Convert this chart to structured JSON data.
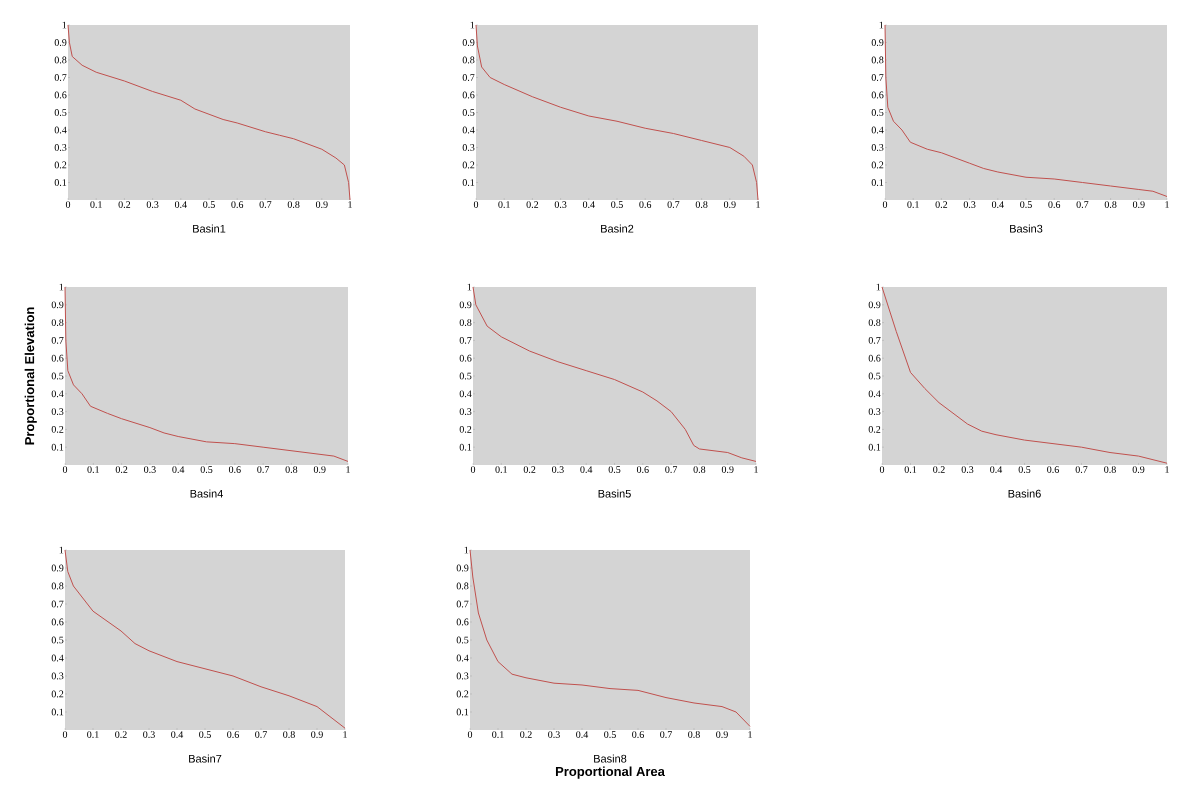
{
  "chart_data": [
    {
      "type": "line",
      "title": "Basin1",
      "color": "#c0504d",
      "xlim": [
        0,
        1
      ],
      "ylim": [
        0,
        1
      ],
      "xticks": [
        0,
        0.1,
        0.2,
        0.3,
        0.4,
        0.5,
        0.6,
        0.7,
        0.8,
        0.9,
        1
      ],
      "yticks": [
        0.1,
        0.2,
        0.3,
        0.4,
        0.5,
        0.6,
        0.7,
        0.8,
        0.9,
        1
      ],
      "x": [
        0,
        0.005,
        0.015,
        0.05,
        0.1,
        0.2,
        0.25,
        0.3,
        0.4,
        0.45,
        0.5,
        0.55,
        0.6,
        0.7,
        0.75,
        0.8,
        0.9,
        0.95,
        0.98,
        0.995,
        1
      ],
      "values": [
        1,
        0.9,
        0.82,
        0.77,
        0.73,
        0.68,
        0.65,
        0.62,
        0.57,
        0.52,
        0.49,
        0.46,
        0.44,
        0.39,
        0.37,
        0.35,
        0.29,
        0.24,
        0.2,
        0.1,
        0
      ]
    },
    {
      "type": "line",
      "title": "Basin2",
      "color": "#c0504d",
      "xlim": [
        0,
        1
      ],
      "ylim": [
        0,
        1
      ],
      "xticks": [
        0,
        0.1,
        0.2,
        0.3,
        0.4,
        0.5,
        0.6,
        0.7,
        0.8,
        0.9,
        1
      ],
      "yticks": [
        0.1,
        0.2,
        0.3,
        0.4,
        0.5,
        0.6,
        0.7,
        0.8,
        0.9,
        1
      ],
      "x": [
        0,
        0.005,
        0.02,
        0.05,
        0.1,
        0.2,
        0.3,
        0.4,
        0.5,
        0.6,
        0.7,
        0.8,
        0.9,
        0.95,
        0.98,
        0.995,
        1
      ],
      "values": [
        1,
        0.88,
        0.76,
        0.7,
        0.66,
        0.59,
        0.53,
        0.48,
        0.45,
        0.41,
        0.38,
        0.34,
        0.3,
        0.25,
        0.2,
        0.1,
        0
      ]
    },
    {
      "type": "line",
      "title": "Basin3",
      "color": "#c0504d",
      "xlim": [
        0,
        1
      ],
      "ylim": [
        0,
        1
      ],
      "xticks": [
        0,
        0.1,
        0.2,
        0.3,
        0.4,
        0.5,
        0.6,
        0.7,
        0.8,
        0.9,
        1
      ],
      "yticks": [
        0.1,
        0.2,
        0.3,
        0.4,
        0.5,
        0.6,
        0.7,
        0.8,
        0.9,
        1
      ],
      "x": [
        0,
        0.003,
        0.01,
        0.03,
        0.06,
        0.09,
        0.15,
        0.2,
        0.3,
        0.35,
        0.4,
        0.5,
        0.6,
        0.7,
        0.8,
        0.9,
        0.95,
        1
      ],
      "values": [
        1,
        0.7,
        0.53,
        0.45,
        0.4,
        0.33,
        0.29,
        0.27,
        0.21,
        0.18,
        0.16,
        0.13,
        0.12,
        0.1,
        0.08,
        0.06,
        0.05,
        0.02
      ]
    },
    {
      "type": "line",
      "title": "Basin4",
      "ylabel": "Proportional Elevation",
      "color": "#c0504d",
      "xlim": [
        0,
        1
      ],
      "ylim": [
        0,
        1
      ],
      "xticks": [
        0,
        0.1,
        0.2,
        0.3,
        0.4,
        0.5,
        0.6,
        0.7,
        0.8,
        0.9,
        1
      ],
      "yticks": [
        0.1,
        0.2,
        0.3,
        0.4,
        0.5,
        0.6,
        0.7,
        0.8,
        0.9,
        1
      ],
      "x": [
        0,
        0.003,
        0.01,
        0.03,
        0.06,
        0.09,
        0.15,
        0.2,
        0.3,
        0.35,
        0.4,
        0.5,
        0.6,
        0.7,
        0.8,
        0.9,
        0.95,
        1
      ],
      "values": [
        1,
        0.7,
        0.53,
        0.45,
        0.4,
        0.33,
        0.29,
        0.26,
        0.21,
        0.18,
        0.16,
        0.13,
        0.12,
        0.1,
        0.08,
        0.06,
        0.05,
        0.02
      ]
    },
    {
      "type": "line",
      "title": "Basin5",
      "color": "#c0504d",
      "xlim": [
        0,
        1
      ],
      "ylim": [
        0,
        1
      ],
      "xticks": [
        0,
        0.1,
        0.2,
        0.3,
        0.4,
        0.5,
        0.6,
        0.7,
        0.8,
        0.9,
        1
      ],
      "yticks": [
        0.1,
        0.2,
        0.3,
        0.4,
        0.5,
        0.6,
        0.7,
        0.8,
        0.9,
        1
      ],
      "x": [
        0,
        0.01,
        0.05,
        0.1,
        0.2,
        0.3,
        0.4,
        0.5,
        0.6,
        0.65,
        0.7,
        0.75,
        0.78,
        0.8,
        0.9,
        0.95,
        1
      ],
      "values": [
        1,
        0.9,
        0.78,
        0.72,
        0.64,
        0.58,
        0.53,
        0.48,
        0.41,
        0.36,
        0.3,
        0.2,
        0.11,
        0.09,
        0.07,
        0.04,
        0.02
      ]
    },
    {
      "type": "line",
      "title": "Basin6",
      "color": "#c0504d",
      "xlim": [
        0,
        1
      ],
      "ylim": [
        0,
        1
      ],
      "xticks": [
        0,
        0.1,
        0.2,
        0.3,
        0.4,
        0.5,
        0.6,
        0.7,
        0.8,
        0.9,
        1
      ],
      "yticks": [
        0.1,
        0.2,
        0.3,
        0.4,
        0.5,
        0.6,
        0.7,
        0.8,
        0.9,
        1
      ],
      "x": [
        0,
        0.02,
        0.05,
        0.1,
        0.15,
        0.2,
        0.3,
        0.35,
        0.4,
        0.5,
        0.6,
        0.7,
        0.8,
        0.9,
        1
      ],
      "values": [
        1,
        0.9,
        0.75,
        0.52,
        0.43,
        0.35,
        0.23,
        0.19,
        0.17,
        0.14,
        0.12,
        0.1,
        0.07,
        0.05,
        0.01
      ]
    },
    {
      "type": "line",
      "title": "Basin7",
      "color": "#c0504d",
      "xlim": [
        0,
        1
      ],
      "ylim": [
        0,
        1
      ],
      "xticks": [
        0,
        0.1,
        0.2,
        0.3,
        0.4,
        0.5,
        0.6,
        0.7,
        0.8,
        0.9,
        1
      ],
      "yticks": [
        0.1,
        0.2,
        0.3,
        0.4,
        0.5,
        0.6,
        0.7,
        0.8,
        0.9,
        1
      ],
      "x": [
        0,
        0.01,
        0.03,
        0.1,
        0.2,
        0.25,
        0.3,
        0.4,
        0.5,
        0.6,
        0.7,
        0.8,
        0.9,
        0.95,
        1
      ],
      "values": [
        1,
        0.88,
        0.8,
        0.66,
        0.55,
        0.48,
        0.44,
        0.38,
        0.34,
        0.3,
        0.24,
        0.19,
        0.13,
        0.07,
        0.01
      ]
    },
    {
      "type": "line",
      "title": "Basin8",
      "xlabel": "Proportional Area",
      "color": "#c0504d",
      "xlim": [
        0,
        1
      ],
      "ylim": [
        0,
        1
      ],
      "xticks": [
        0,
        0.1,
        0.2,
        0.3,
        0.4,
        0.5,
        0.6,
        0.7,
        0.8,
        0.9,
        1
      ],
      "yticks": [
        0.1,
        0.2,
        0.3,
        0.4,
        0.5,
        0.6,
        0.7,
        0.8,
        0.9,
        1
      ],
      "x": [
        0,
        0.01,
        0.03,
        0.06,
        0.1,
        0.15,
        0.2,
        0.3,
        0.4,
        0.5,
        0.6,
        0.7,
        0.8,
        0.9,
        0.95,
        1
      ],
      "values": [
        1,
        0.85,
        0.65,
        0.5,
        0.38,
        0.31,
        0.29,
        0.26,
        0.25,
        0.23,
        0.22,
        0.18,
        0.15,
        0.13,
        0.1,
        0.02
      ]
    }
  ]
}
